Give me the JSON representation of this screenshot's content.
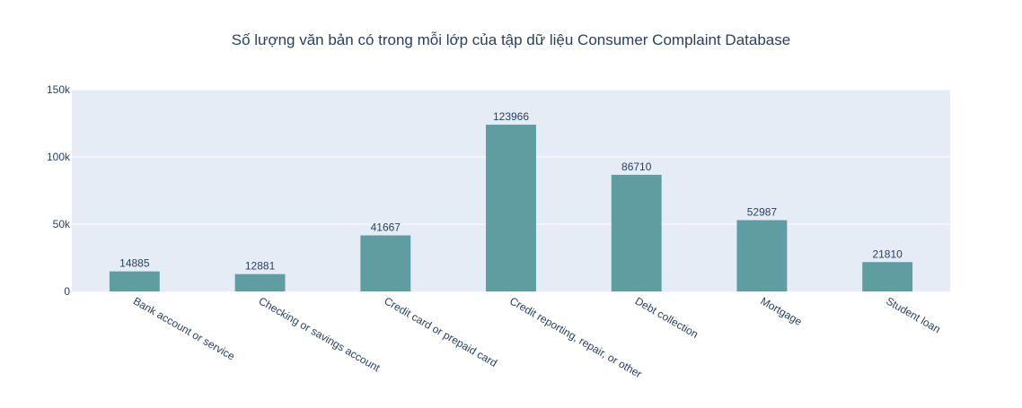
{
  "chart_data": {
    "type": "bar",
    "title": "Số lượng văn bản có trong mỗi lớp của tập dữ liệu Consumer Complaint Database",
    "xlabel": "",
    "ylabel": "",
    "categories": [
      "Bank account or service",
      "Checking or savings account",
      "Credit card or prepaid card",
      "Credit reporting, repair, or other",
      "Debt collection",
      "Mortgage",
      "Student loan"
    ],
    "values": [
      14885,
      12881,
      41667,
      123966,
      86710,
      52987,
      21810
    ],
    "value_labels": [
      "14885",
      "12881",
      "41667",
      "123966",
      "86710",
      "52987",
      "21810"
    ],
    "ylim": [
      0,
      150000
    ],
    "yticks": [
      0,
      50000,
      100000,
      150000
    ],
    "ytick_labels": [
      "0",
      "50k",
      "100k",
      "150k"
    ],
    "grid": true,
    "legend": "none",
    "colors": {
      "bar": "#5f9ea0",
      "plot_bg": "#e5ecf6",
      "grid": "#ffffff",
      "text": "#2a3f5f",
      "title": "#2a3f5f"
    }
  }
}
